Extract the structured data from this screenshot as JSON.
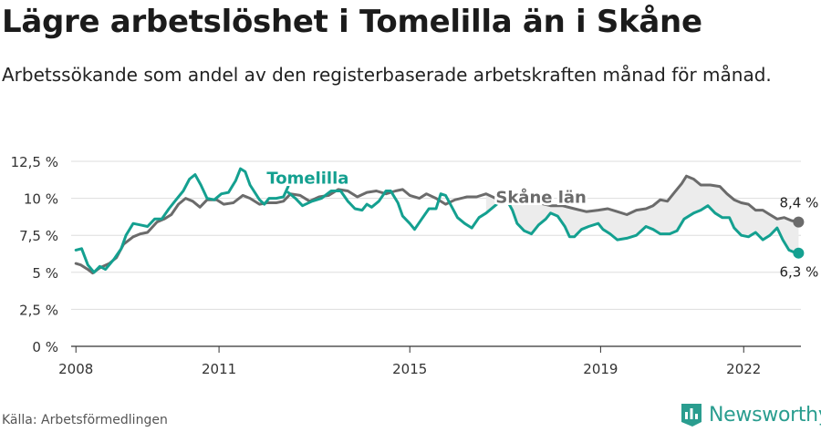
{
  "title": "Lägre arbetslöshet i Tomelilla än i Skåne",
  "subtitle": "Arbetssökande som andel av den registerbaserade arbetskraften månad för månad.",
  "source": "Källa: Arbetsförmedlingen",
  "brand": "Newsworthy",
  "colors": {
    "tomelilla": "#14a090",
    "skane": "#6b6b6b",
    "band": "#ececec",
    "grid": "#dddddd",
    "brand": "#2a9d8f"
  },
  "chart_data": {
    "type": "line",
    "title": "Lägre arbetslöshet i Tomelilla än i Skåne",
    "xlabel": "",
    "ylabel": "",
    "xlim": [
      2007.9,
      2023.2
    ],
    "ylim": [
      0,
      12.5
    ],
    "y_ticks": [
      {
        "value": 0,
        "label": "0 %"
      },
      {
        "value": 2.5,
        "label": "2,5 %"
      },
      {
        "value": 5,
        "label": "5 %"
      },
      {
        "value": 7.5,
        "label": "7,5 %"
      },
      {
        "value": 10,
        "label": "10 %"
      },
      {
        "value": 12.5,
        "label": "12,5 %"
      }
    ],
    "x_ticks": [
      {
        "value": 2008,
        "label": "2008"
      },
      {
        "value": 2011,
        "label": "2011"
      },
      {
        "value": 2015,
        "label": "2015"
      },
      {
        "value": 2019,
        "label": "2019"
      },
      {
        "value": 2022,
        "label": "2022"
      }
    ],
    "series": [
      {
        "name": "Skåne län",
        "key": "skane",
        "end_label": "8,4 %",
        "points": [
          [
            2008.0,
            5.6
          ],
          [
            2008.1,
            5.5
          ],
          [
            2008.25,
            5.2
          ],
          [
            2008.35,
            4.95
          ],
          [
            2008.5,
            5.3
          ],
          [
            2008.7,
            5.6
          ],
          [
            2008.85,
            6.0
          ],
          [
            2009.0,
            6.9
          ],
          [
            2009.2,
            7.4
          ],
          [
            2009.35,
            7.6
          ],
          [
            2009.5,
            7.7
          ],
          [
            2009.7,
            8.4
          ],
          [
            2009.85,
            8.6
          ],
          [
            2010.0,
            8.9
          ],
          [
            2010.15,
            9.6
          ],
          [
            2010.3,
            10.0
          ],
          [
            2010.45,
            9.8
          ],
          [
            2010.6,
            9.4
          ],
          [
            2010.75,
            9.9
          ],
          [
            2010.95,
            9.9
          ],
          [
            2011.1,
            9.6
          ],
          [
            2011.3,
            9.7
          ],
          [
            2011.5,
            10.2
          ],
          [
            2011.65,
            10.0
          ],
          [
            2011.85,
            9.6
          ],
          [
            2012.0,
            9.7
          ],
          [
            2012.2,
            9.7
          ],
          [
            2012.35,
            9.8
          ],
          [
            2012.5,
            10.3
          ],
          [
            2012.7,
            10.2
          ],
          [
            2012.9,
            9.8
          ],
          [
            2013.1,
            10.1
          ],
          [
            2013.3,
            10.2
          ],
          [
            2013.5,
            10.6
          ],
          [
            2013.7,
            10.5
          ],
          [
            2013.9,
            10.1
          ],
          [
            2014.1,
            10.4
          ],
          [
            2014.3,
            10.5
          ],
          [
            2014.5,
            10.3
          ],
          [
            2014.7,
            10.5
          ],
          [
            2014.85,
            10.6
          ],
          [
            2015.0,
            10.2
          ],
          [
            2015.2,
            10.0
          ],
          [
            2015.35,
            10.3
          ],
          [
            2015.55,
            10.0
          ],
          [
            2015.75,
            9.6
          ],
          [
            2015.95,
            9.9
          ],
          [
            2016.2,
            10.1
          ],
          [
            2016.4,
            10.1
          ],
          [
            2016.6,
            10.3
          ],
          [
            2016.8,
            10.0
          ],
          [
            2016.95,
            9.7
          ],
          [
            2017.2,
            9.9
          ],
          [
            2017.45,
            9.9
          ],
          [
            2017.7,
            9.7
          ],
          [
            2017.95,
            9.5
          ],
          [
            2018.2,
            9.5
          ],
          [
            2018.45,
            9.3
          ],
          [
            2018.7,
            9.1
          ],
          [
            2018.95,
            9.2
          ],
          [
            2019.15,
            9.3
          ],
          [
            2019.35,
            9.1
          ],
          [
            2019.55,
            8.9
          ],
          [
            2019.75,
            9.2
          ],
          [
            2019.95,
            9.3
          ],
          [
            2020.1,
            9.5
          ],
          [
            2020.25,
            9.9
          ],
          [
            2020.4,
            9.8
          ],
          [
            2020.55,
            10.4
          ],
          [
            2020.7,
            11.0
          ],
          [
            2020.8,
            11.5
          ],
          [
            2020.95,
            11.3
          ],
          [
            2021.1,
            10.9
          ],
          [
            2021.3,
            10.9
          ],
          [
            2021.5,
            10.8
          ],
          [
            2021.65,
            10.3
          ],
          [
            2021.8,
            9.9
          ],
          [
            2021.95,
            9.7
          ],
          [
            2022.1,
            9.6
          ],
          [
            2022.25,
            9.2
          ],
          [
            2022.4,
            9.2
          ],
          [
            2022.55,
            8.9
          ],
          [
            2022.7,
            8.6
          ],
          [
            2022.85,
            8.7
          ],
          [
            2023.0,
            8.5
          ],
          [
            2023.15,
            8.4
          ]
        ]
      },
      {
        "name": "Tomelilla",
        "key": "tomelilla",
        "end_label": "6,3 %",
        "points": [
          [
            2008.0,
            6.5
          ],
          [
            2008.12,
            6.6
          ],
          [
            2008.25,
            5.5
          ],
          [
            2008.38,
            5.0
          ],
          [
            2008.5,
            5.4
          ],
          [
            2008.62,
            5.2
          ],
          [
            2008.8,
            5.9
          ],
          [
            2008.95,
            6.6
          ],
          [
            2009.05,
            7.5
          ],
          [
            2009.2,
            8.3
          ],
          [
            2009.35,
            8.2
          ],
          [
            2009.5,
            8.1
          ],
          [
            2009.65,
            8.6
          ],
          [
            2009.8,
            8.6
          ],
          [
            2009.95,
            9.3
          ],
          [
            2010.1,
            9.9
          ],
          [
            2010.25,
            10.5
          ],
          [
            2010.38,
            11.3
          ],
          [
            2010.5,
            11.6
          ],
          [
            2010.62,
            10.9
          ],
          [
            2010.75,
            10.0
          ],
          [
            2010.9,
            9.9
          ],
          [
            2011.05,
            10.3
          ],
          [
            2011.2,
            10.4
          ],
          [
            2011.35,
            11.2
          ],
          [
            2011.45,
            12.0
          ],
          [
            2011.55,
            11.8
          ],
          [
            2011.65,
            10.9
          ],
          [
            2011.85,
            9.9
          ],
          [
            2011.95,
            9.6
          ],
          [
            2012.05,
            10.0
          ],
          [
            2012.2,
            10.0
          ],
          [
            2012.35,
            10.1
          ],
          [
            2012.45,
            10.8
          ]
        ],
        "points_2": [
          [
            2012.45,
            10.4
          ],
          [
            2012.6,
            10.0
          ],
          [
            2012.75,
            9.5
          ],
          [
            2012.95,
            9.8
          ],
          [
            2013.15,
            10.0
          ],
          [
            2013.35,
            10.5
          ],
          [
            2013.55,
            10.5
          ],
          [
            2013.7,
            9.8
          ],
          [
            2013.85,
            9.3
          ],
          [
            2014.0,
            9.2
          ],
          [
            2014.1,
            9.6
          ],
          [
            2014.2,
            9.4
          ],
          [
            2014.35,
            9.8
          ],
          [
            2014.5,
            10.5
          ],
          [
            2014.6,
            10.5
          ],
          [
            2014.75,
            9.7
          ],
          [
            2014.85,
            8.8
          ],
          [
            2015.0,
            8.3
          ],
          [
            2015.1,
            7.9
          ],
          [
            2015.25,
            8.6
          ],
          [
            2015.4,
            9.3
          ],
          [
            2015.55,
            9.3
          ],
          [
            2015.65,
            10.3
          ],
          [
            2015.75,
            10.2
          ],
          [
            2015.85,
            9.6
          ],
          [
            2016.0,
            8.7
          ],
          [
            2016.15,
            8.3
          ],
          [
            2016.3,
            8.0
          ],
          [
            2016.45,
            8.7
          ],
          [
            2016.6,
            9.0
          ],
          [
            2016.75,
            9.4
          ],
          [
            2016.9,
            9.8
          ],
          [
            2017.05,
            9.8
          ],
          [
            2017.15,
            9.2
          ],
          [
            2017.25,
            8.3
          ],
          [
            2017.4,
            7.8
          ],
          [
            2017.55,
            7.6
          ],
          [
            2017.7,
            8.2
          ],
          [
            2017.85,
            8.6
          ],
          [
            2017.95,
            9.0
          ],
          [
            2018.1,
            8.8
          ],
          [
            2018.25,
            8.1
          ],
          [
            2018.35,
            7.4
          ],
          [
            2018.45,
            7.4
          ],
          [
            2018.6,
            7.9
          ],
          [
            2018.75,
            8.1
          ],
          [
            2018.95,
            8.3
          ],
          [
            2019.05,
            7.9
          ],
          [
            2019.2,
            7.6
          ],
          [
            2019.35,
            7.2
          ],
          [
            2019.55,
            7.3
          ],
          [
            2019.75,
            7.5
          ],
          [
            2019.95,
            8.1
          ],
          [
            2020.1,
            7.9
          ],
          [
            2020.25,
            7.6
          ],
          [
            2020.45,
            7.6
          ],
          [
            2020.6,
            7.8
          ],
          [
            2020.75,
            8.6
          ],
          [
            2020.95,
            9.0
          ],
          [
            2021.1,
            9.2
          ],
          [
            2021.25,
            9.5
          ],
          [
            2021.4,
            9.0
          ],
          [
            2021.55,
            8.7
          ],
          [
            2021.7,
            8.7
          ],
          [
            2021.8,
            8.0
          ],
          [
            2021.95,
            7.5
          ],
          [
            2022.1,
            7.4
          ],
          [
            2022.25,
            7.7
          ],
          [
            2022.4,
            7.2
          ],
          [
            2022.55,
            7.5
          ],
          [
            2022.7,
            8.0
          ],
          [
            2022.82,
            7.2
          ],
          [
            2022.95,
            6.5
          ],
          [
            2023.1,
            6.3
          ],
          [
            2023.15,
            6.3
          ]
        ]
      }
    ]
  }
}
